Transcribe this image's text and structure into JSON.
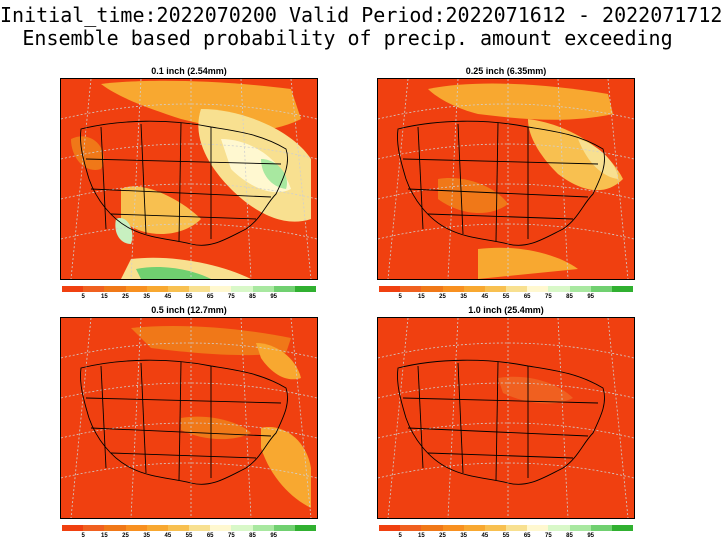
{
  "header": {
    "line1": "Initial_time:2022070200  Valid Period:2022071612 - 2022071712",
    "line2": "Ensemble based probability of precip. amount exceeding"
  },
  "panels": [
    {
      "title": "0.1 inch (2.54mm)",
      "dominant_color": "#f04010",
      "secondary": [
        "#f07818",
        "#f8a830",
        "#f8e090",
        "#fff8d0",
        "#c8f0c0",
        "#60c860"
      ]
    },
    {
      "title": "0.25 inch (6.35mm)",
      "dominant_color": "#f04010",
      "secondary": [
        "#f07818",
        "#f8a830",
        "#f8d070"
      ]
    },
    {
      "title": "0.5 inch (12.7mm)",
      "dominant_color": "#f04010",
      "secondary": [
        "#f07818",
        "#f8a830"
      ]
    },
    {
      "title": "1.0 inch (25.4mm)",
      "dominant_color": "#f04010",
      "secondary": [
        "#f06020"
      ]
    }
  ],
  "colorbar": {
    "colors": [
      "#f04010",
      "#f06020",
      "#f07818",
      "#f89020",
      "#f8a830",
      "#f8c050",
      "#f8e090",
      "#fff8d0",
      "#d8f8c8",
      "#a8e8a0",
      "#70d070",
      "#30b030"
    ],
    "labels": [
      "5",
      "15",
      "25",
      "35",
      "45",
      "55",
      "65",
      "75",
      "85",
      "95"
    ]
  }
}
